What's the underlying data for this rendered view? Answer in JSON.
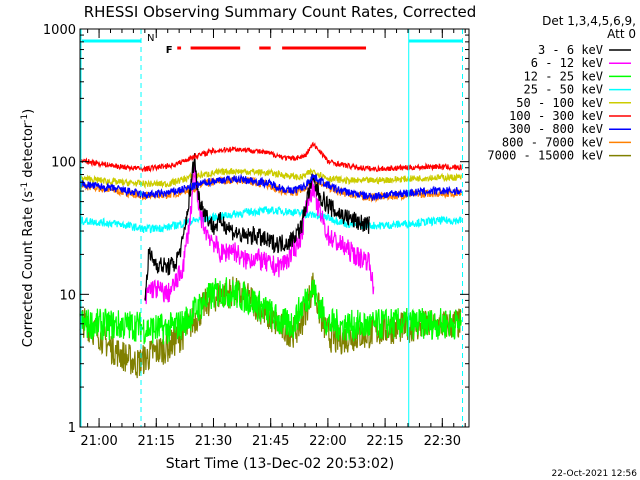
{
  "chart_data": {
    "type": "line",
    "title": "RHESSI Observing Summary Count Rates, Corrected",
    "xlabel": "Start Time (13-Dec-02 20:53:02)",
    "ylabel_main": "Corrected Count Rate (s",
    "ylabel_sup1": "-1",
    "ylabel_mid": " detector",
    "ylabel_sup2": "-1",
    "ylabel_end": ")",
    "y_scale": "log",
    "ylim": [
      1,
      1000
    ],
    "xlim_minutes": [
      -5,
      97
    ],
    "x_ticks": [
      {
        "label": "21:00",
        "min": 0
      },
      {
        "label": "21:15",
        "min": 15
      },
      {
        "label": "21:30",
        "min": 30
      },
      {
        "label": "21:45",
        "min": 45
      },
      {
        "label": "22:00",
        "min": 60
      },
      {
        "label": "22:15",
        "min": 75
      },
      {
        "label": "22:30",
        "min": 90
      }
    ],
    "y_ticks": [
      {
        "label": "1",
        "value": 1
      },
      {
        "label": "10",
        "value": 10
      },
      {
        "label": "100",
        "value": 100
      },
      {
        "label": "1000",
        "value": 1000
      }
    ],
    "legend_header": [
      "Det 1,3,4,5,6,9,",
      "Att 0"
    ],
    "legend_position": "top-right outside",
    "series": [
      {
        "name": "3 - 6 keV",
        "color": "#000000"
      },
      {
        "name": "6 - 12 keV",
        "color": "#ff00ff"
      },
      {
        "name": "12 - 25 keV",
        "color": "#00ff00"
      },
      {
        "name": "25 - 50 keV",
        "color": "#00ffff"
      },
      {
        "name": "50 - 100 keV",
        "color": "#cccc00"
      },
      {
        "name": "100 - 300 keV",
        "color": "#ff0000"
      },
      {
        "name": "300 - 800 keV",
        "color": "#0000ff"
      },
      {
        "name": "800 - 7000 keV",
        "color": "#ff8000"
      },
      {
        "name": "7000 - 15000 keV",
        "color": "#808000"
      }
    ],
    "series_points": [
      [
        [
          12,
          9
        ],
        [
          13,
          20
        ],
        [
          15,
          17
        ],
        [
          18,
          16
        ],
        [
          20,
          17
        ],
        [
          22,
          25
        ],
        [
          24,
          62
        ],
        [
          25,
          110
        ],
        [
          26,
          55
        ],
        [
          28,
          40
        ],
        [
          30,
          32
        ],
        [
          32,
          36
        ],
        [
          35,
          30
        ],
        [
          38,
          27
        ],
        [
          41,
          28
        ],
        [
          44,
          25
        ],
        [
          47,
          24
        ],
        [
          50,
          25
        ],
        [
          53,
          32
        ],
        [
          55,
          60
        ],
        [
          56,
          72
        ],
        [
          58,
          55
        ],
        [
          60,
          47
        ],
        [
          62,
          42
        ],
        [
          65,
          38
        ],
        [
          68,
          35
        ],
        [
          71,
          33
        ]
      ],
      [
        [
          12,
          8.5
        ],
        [
          13,
          11
        ],
        [
          15,
          11
        ],
        [
          18,
          10
        ],
        [
          20,
          12
        ],
        [
          22,
          16
        ],
        [
          24,
          40
        ],
        [
          25,
          90
        ],
        [
          26,
          45
        ],
        [
          28,
          30
        ],
        [
          30,
          25
        ],
        [
          32,
          20
        ],
        [
          35,
          22
        ],
        [
          38,
          18
        ],
        [
          41,
          19
        ],
        [
          44,
          17
        ],
        [
          47,
          16
        ],
        [
          50,
          19
        ],
        [
          53,
          28
        ],
        [
          55,
          55
        ],
        [
          56,
          63
        ],
        [
          58,
          40
        ],
        [
          60,
          28
        ],
        [
          62,
          25
        ],
        [
          65,
          22
        ],
        [
          68,
          19
        ],
        [
          71,
          18
        ],
        [
          72,
          10
        ]
      ],
      [
        [
          -5,
          6
        ],
        [
          10,
          5.8
        ],
        [
          12,
          5.5
        ],
        [
          18,
          5.5
        ],
        [
          22,
          6
        ],
        [
          25,
          7.5
        ],
        [
          28,
          9
        ],
        [
          30,
          10
        ],
        [
          32,
          10.5
        ],
        [
          36,
          10
        ],
        [
          40,
          9
        ],
        [
          44,
          7.5
        ],
        [
          48,
          6
        ],
        [
          51,
          6
        ],
        [
          53,
          8
        ],
        [
          55,
          10
        ],
        [
          56,
          11
        ],
        [
          58,
          8
        ],
        [
          60,
          6
        ],
        [
          64,
          5.8
        ],
        [
          72,
          5.8
        ],
        [
          75,
          6
        ],
        [
          85,
          6
        ],
        [
          95,
          6
        ]
      ],
      [
        [
          -5,
          36
        ],
        [
          5,
          34
        ],
        [
          12,
          31
        ],
        [
          18,
          32
        ],
        [
          25,
          36
        ],
        [
          30,
          38
        ],
        [
          35,
          40
        ],
        [
          40,
          42
        ],
        [
          45,
          43
        ],
        [
          50,
          42
        ],
        [
          55,
          40
        ],
        [
          60,
          38
        ],
        [
          65,
          34
        ],
        [
          70,
          33
        ],
        [
          75,
          33
        ],
        [
          80,
          34
        ],
        [
          85,
          35
        ],
        [
          90,
          36
        ],
        [
          95,
          36
        ]
      ],
      [
        [
          -5,
          75
        ],
        [
          5,
          70
        ],
        [
          12,
          68
        ],
        [
          18,
          68
        ],
        [
          25,
          78
        ],
        [
          30,
          82
        ],
        [
          35,
          85
        ],
        [
          40,
          84
        ],
        [
          45,
          82
        ],
        [
          50,
          78
        ],
        [
          53,
          76
        ],
        [
          56,
          85
        ],
        [
          58,
          80
        ],
        [
          60,
          75
        ],
        [
          65,
          72
        ],
        [
          72,
          72
        ],
        [
          80,
          74
        ],
        [
          88,
          76
        ],
        [
          95,
          76
        ]
      ],
      [
        [
          -5,
          102
        ],
        [
          5,
          92
        ],
        [
          12,
          88
        ],
        [
          20,
          95
        ],
        [
          25,
          110
        ],
        [
          30,
          120
        ],
        [
          35,
          125
        ],
        [
          40,
          122
        ],
        [
          45,
          115
        ],
        [
          50,
          105
        ],
        [
          54,
          110
        ],
        [
          56,
          135
        ],
        [
          58,
          120
        ],
        [
          60,
          100
        ],
        [
          66,
          92
        ],
        [
          72,
          88
        ],
        [
          80,
          90
        ],
        [
          88,
          92
        ],
        [
          95,
          90
        ]
      ],
      [
        [
          -5,
          68
        ],
        [
          5,
          62
        ],
        [
          12,
          56
        ],
        [
          18,
          58
        ],
        [
          24,
          64
        ],
        [
          28,
          70
        ],
        [
          32,
          73
        ],
        [
          36,
          74
        ],
        [
          40,
          72
        ],
        [
          45,
          68
        ],
        [
          50,
          60
        ],
        [
          54,
          65
        ],
        [
          56,
          78
        ],
        [
          58,
          72
        ],
        [
          62,
          62
        ],
        [
          70,
          55
        ],
        [
          72,
          55
        ],
        [
          80,
          58
        ],
        [
          88,
          60
        ],
        [
          95,
          60
        ]
      ],
      [
        [
          -5,
          66
        ],
        [
          5,
          60
        ],
        [
          12,
          55
        ],
        [
          18,
          56
        ],
        [
          24,
          62
        ],
        [
          28,
          68
        ],
        [
          32,
          72
        ],
        [
          36,
          73
        ],
        [
          40,
          71
        ],
        [
          45,
          66
        ],
        [
          50,
          57
        ],
        [
          54,
          62
        ],
        [
          56,
          75
        ],
        [
          58,
          70
        ],
        [
          62,
          60
        ],
        [
          70,
          54
        ],
        [
          72,
          54
        ],
        [
          80,
          56
        ],
        [
          88,
          58
        ],
        [
          95,
          58
        ]
      ],
      [
        [
          -5,
          6.5
        ],
        [
          0,
          5
        ],
        [
          3,
          4
        ],
        [
          6,
          3.5
        ],
        [
          10,
          3
        ],
        [
          14,
          3.6
        ],
        [
          18,
          4
        ],
        [
          22,
          5
        ],
        [
          25,
          6.5
        ],
        [
          28,
          8.5
        ],
        [
          30,
          9.5
        ],
        [
          32,
          10
        ],
        [
          35,
          10.5
        ],
        [
          40,
          9
        ],
        [
          44,
          7
        ],
        [
          48,
          5.5
        ],
        [
          51,
          5.2
        ],
        [
          53,
          6
        ],
        [
          55,
          9
        ],
        [
          56,
          12
        ],
        [
          58,
          7
        ],
        [
          60,
          5
        ],
        [
          62,
          4.5
        ],
        [
          66,
          4.8
        ],
        [
          70,
          5
        ],
        [
          72,
          5.2
        ],
        [
          76,
          5.5
        ],
        [
          85,
          5.8
        ],
        [
          95,
          6
        ]
      ]
    ],
    "annotations": {
      "attenuator_flag_label": "N",
      "flare_flag_label": "F",
      "bottom_right_date": "22-Oct-2021 12:56"
    }
  }
}
